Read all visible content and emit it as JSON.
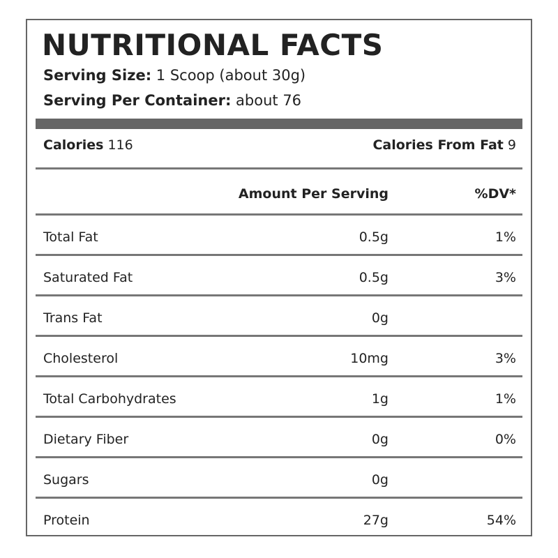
{
  "header": {
    "title": "NUTRITIONAL FACTS",
    "serving_size": {
      "label": "Serving Size:",
      "value": "1 Scoop (about 30g)"
    },
    "servings_per_container": {
      "label": "Serving Per Container:",
      "value": "about 76"
    }
  },
  "calories": {
    "label": "Calories",
    "value": "116"
  },
  "calories_from_fat": {
    "label": "Calories From Fat",
    "value": "9"
  },
  "table": {
    "columns": [
      "Amount Per Serving",
      "%DV*"
    ],
    "rows": [
      {
        "name": "Total Fat",
        "amount": "0.5g",
        "dv": "1%"
      },
      {
        "name": "Saturated Fat",
        "amount": "0.5g",
        "dv": "3%"
      },
      {
        "name": "Trans Fat",
        "amount": "0g"
      },
      {
        "name": "Cholesterol",
        "amount": "10mg",
        "dv": "3%"
      },
      {
        "name": "Total Carbohydrates",
        "amount": "1g",
        "dv": "1%"
      },
      {
        "name": "Dietary Fiber",
        "amount": "0g",
        "dv": "0%"
      },
      {
        "name": "Sugars",
        "amount": "0g"
      },
      {
        "name": "Protein",
        "amount": "27g",
        "dv": "54%"
      }
    ]
  }
}
